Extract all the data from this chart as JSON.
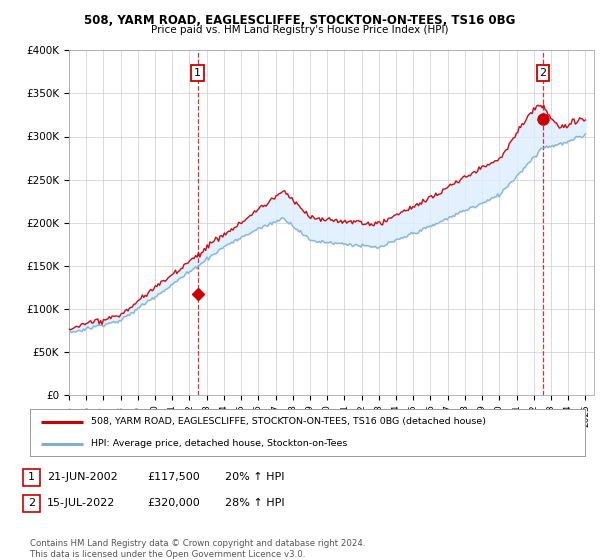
{
  "title1": "508, YARM ROAD, EAGLESCLIFFE, STOCKTON-ON-TEES, TS16 0BG",
  "title2": "Price paid vs. HM Land Registry's House Price Index (HPI)",
  "yticks": [
    0,
    50000,
    100000,
    150000,
    200000,
    250000,
    300000,
    350000,
    400000
  ],
  "ytick_labels": [
    "£0",
    "£50K",
    "£100K",
    "£150K",
    "£200K",
    "£250K",
    "£300K",
    "£350K",
    "£400K"
  ],
  "sale1_price": 117500,
  "sale1_label": "1",
  "sale2_price": 320000,
  "sale2_label": "2",
  "legend_line1": "508, YARM ROAD, EAGLESCLIFFE, STOCKTON-ON-TEES, TS16 0BG (detached house)",
  "legend_line2": "HPI: Average price, detached house, Stockton-on-Tees",
  "footer": "Contains HM Land Registry data © Crown copyright and database right 2024.\nThis data is licensed under the Open Government Licence v3.0.",
  "property_color": "#cc0000",
  "hpi_color": "#7bafd4",
  "fill_color": "#ddeeff",
  "vline_color": "#cc0000",
  "background_color": "#ffffff",
  "grid_color": "#cccccc"
}
